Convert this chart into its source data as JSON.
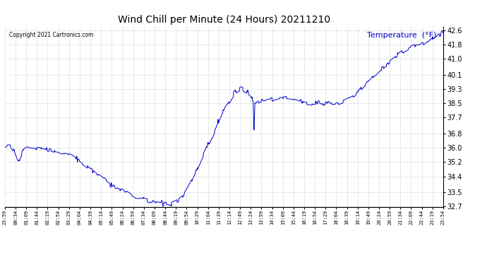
{
  "title": "Wind Chill per Minute (24 Hours) 20211210",
  "temp_label": "Temperature  (°F)",
  "copyright_text": "Copyright 2021 Cartronics.com",
  "line_color": "#0000cc",
  "temp_label_color": "#0000cc",
  "background_color": "#ffffff",
  "grid_color": "#c8c8c8",
  "title_color": "#000000",
  "ylim": [
    32.7,
    42.8
  ],
  "yticks": [
    32.7,
    33.5,
    34.4,
    35.2,
    36.0,
    36.8,
    37.7,
    38.5,
    39.3,
    40.1,
    41.0,
    41.8,
    42.6
  ],
  "xtick_labels": [
    "23:59",
    "00:34",
    "01:09",
    "01:44",
    "02:19",
    "02:54",
    "03:29",
    "04:04",
    "04:39",
    "05:14",
    "05:49",
    "06:24",
    "06:59",
    "07:34",
    "08:09",
    "08:44",
    "09:19",
    "09:54",
    "10:29",
    "11:04",
    "11:39",
    "12:14",
    "12:49",
    "13:24",
    "13:59",
    "14:34",
    "15:09",
    "15:44",
    "16:19",
    "16:54",
    "17:29",
    "18:04",
    "18:39",
    "19:14",
    "19:49",
    "20:24",
    "20:59",
    "21:34",
    "22:09",
    "22:44",
    "23:19",
    "23:54"
  ],
  "n_points": 1440,
  "figsize": [
    6.9,
    3.75
  ],
  "dpi": 100
}
